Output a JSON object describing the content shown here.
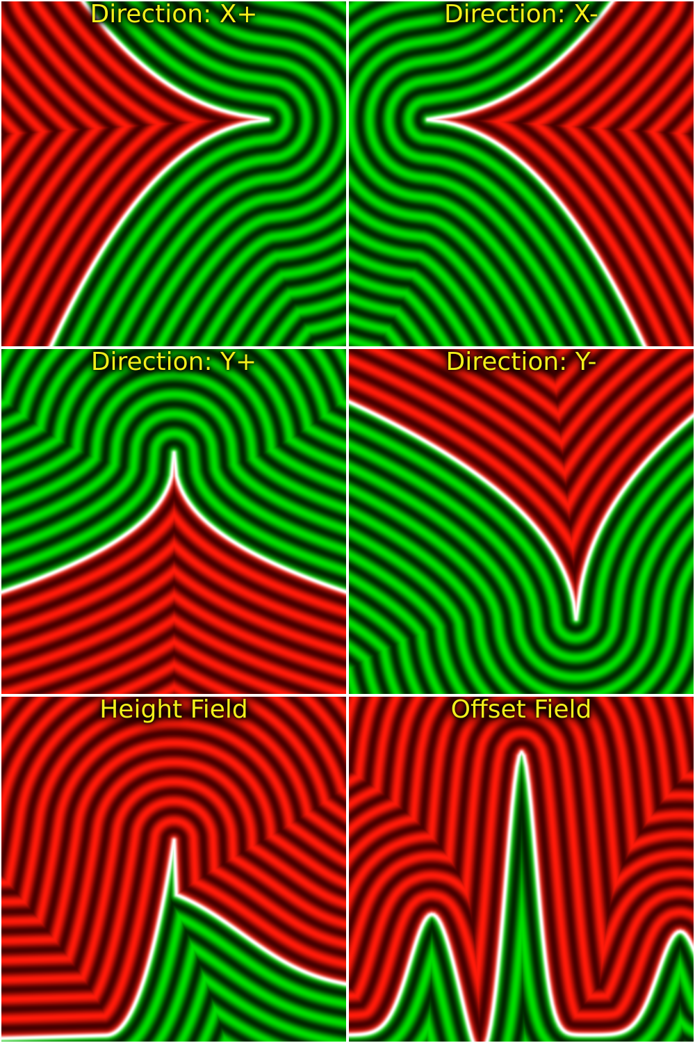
{
  "colors": {
    "inside_stripe": "#00dd00",
    "inside_dark": "#002800",
    "outside_stripe": "#ff1a0a",
    "outside_dark": "#4a0000",
    "boundary": "#ffffff",
    "caption": "#f2ef1a",
    "background": "#ffffff"
  },
  "panels": [
    {
      "title": "Direction: X+",
      "mode": "x_plus"
    },
    {
      "title": "Direction: X-",
      "mode": "x_minus"
    },
    {
      "title": "Direction: Y+",
      "mode": "y_plus"
    },
    {
      "title": "Direction: Y-",
      "mode": "y_minus"
    },
    {
      "title": "Height Field",
      "mode": "height_field"
    },
    {
      "title": "Offset Field",
      "mode": "offset_field"
    }
  ]
}
